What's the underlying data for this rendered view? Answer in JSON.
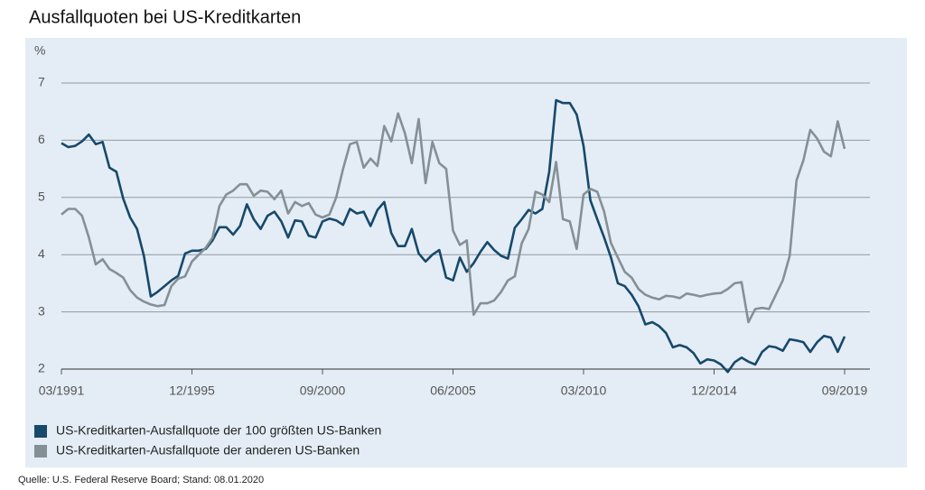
{
  "chart_data": {
    "type": "line",
    "title": "Ausfallquoten bei US-Kreditkarten",
    "y_label": "%",
    "source": "Quelle: U.S. Federal Reserve Board; Stand: 08.01.2020",
    "categories": [
      "03/1991",
      null,
      null,
      null,
      null,
      null,
      null,
      null,
      null,
      null,
      null,
      null,
      null,
      null,
      null,
      null,
      null,
      null,
      null,
      "12/1995",
      null,
      null,
      null,
      null,
      null,
      null,
      null,
      null,
      null,
      null,
      null,
      null,
      null,
      null,
      null,
      null,
      null,
      null,
      "09/2000",
      null,
      null,
      null,
      null,
      null,
      null,
      null,
      null,
      null,
      null,
      null,
      null,
      null,
      null,
      null,
      null,
      null,
      null,
      "06/2005",
      null,
      null,
      null,
      null,
      null,
      null,
      null,
      null,
      null,
      null,
      null,
      null,
      null,
      null,
      null,
      null,
      null,
      null,
      "03/2010",
      null,
      null,
      null,
      null,
      null,
      null,
      null,
      null,
      null,
      null,
      null,
      null,
      null,
      null,
      null,
      null,
      null,
      null,
      "12/2014",
      null,
      null,
      null,
      null,
      null,
      null,
      null,
      null,
      null,
      null,
      null,
      null,
      null,
      null,
      null,
      null,
      null,
      null,
      "09/2019"
    ],
    "series": [
      {
        "name": "US-Kreditkarten-Ausfallquote der 100 größten US-Banken",
        "color": "#17496b",
        "values": [
          5.95,
          5.88,
          5.9,
          5.98,
          6.1,
          5.93,
          5.97,
          5.52,
          5.45,
          4.98,
          4.65,
          4.45,
          3.98,
          3.27,
          3.35,
          3.45,
          3.55,
          3.63,
          4.02,
          4.07,
          4.07,
          4.1,
          4.25,
          4.48,
          4.48,
          4.35,
          4.5,
          4.88,
          4.62,
          4.45,
          4.68,
          4.75,
          4.58,
          4.3,
          4.6,
          4.58,
          4.33,
          4.3,
          4.58,
          4.63,
          4.6,
          4.52,
          4.8,
          4.72,
          4.75,
          4.5,
          4.78,
          4.92,
          4.38,
          4.15,
          4.15,
          4.45,
          4.02,
          3.88,
          4.0,
          4.08,
          3.6,
          3.55,
          3.95,
          3.7,
          3.85,
          4.05,
          4.22,
          4.08,
          3.98,
          3.93,
          4.47,
          4.62,
          4.78,
          4.72,
          4.8,
          5.45,
          6.7,
          6.65,
          6.65,
          6.45,
          5.9,
          4.95,
          4.62,
          4.3,
          3.95,
          3.5,
          3.45,
          3.3,
          3.1,
          2.78,
          2.82,
          2.75,
          2.63,
          2.38,
          2.42,
          2.38,
          2.28,
          2.1,
          2.17,
          2.15,
          2.08,
          1.95,
          2.12,
          2.2,
          2.13,
          2.08,
          2.3,
          2.4,
          2.38,
          2.32,
          2.52,
          2.5,
          2.47,
          2.3,
          2.47,
          2.58,
          2.55,
          2.3,
          2.57
        ]
      },
      {
        "name": "US-Kreditkarten-Ausfallquote der anderen US-Banken",
        "color": "#849096",
        "values": [
          4.7,
          4.8,
          4.8,
          4.68,
          4.3,
          3.83,
          3.92,
          3.75,
          3.68,
          3.6,
          3.38,
          3.25,
          3.18,
          3.13,
          3.1,
          3.12,
          3.45,
          3.58,
          3.62,
          3.88,
          4.0,
          4.12,
          4.3,
          4.85,
          5.05,
          5.12,
          5.23,
          5.23,
          5.03,
          5.12,
          5.1,
          4.97,
          5.12,
          4.72,
          4.92,
          4.85,
          4.9,
          4.7,
          4.65,
          4.7,
          5.0,
          5.5,
          5.93,
          5.97,
          5.52,
          5.68,
          5.55,
          6.25,
          5.98,
          6.47,
          6.12,
          5.6,
          6.37,
          5.25,
          5.97,
          5.6,
          5.5,
          4.42,
          4.17,
          4.25,
          2.95,
          3.15,
          3.15,
          3.2,
          3.35,
          3.55,
          3.62,
          4.2,
          4.45,
          5.1,
          5.05,
          4.92,
          5.62,
          4.62,
          4.58,
          4.1,
          5.05,
          5.15,
          5.1,
          4.75,
          4.2,
          3.95,
          3.7,
          3.6,
          3.4,
          3.3,
          3.25,
          3.22,
          3.28,
          3.27,
          3.24,
          3.32,
          3.3,
          3.27,
          3.3,
          3.32,
          3.33,
          3.4,
          3.5,
          3.52,
          2.82,
          3.05,
          3.07,
          3.05,
          3.3,
          3.55,
          3.98,
          5.3,
          5.65,
          6.18,
          6.03,
          5.8,
          5.72,
          6.33,
          5.85
        ]
      }
    ],
    "ylim": [
      2,
      7
    ],
    "yticks": [
      2,
      3,
      4,
      5,
      6,
      7
    ],
    "grid": true
  }
}
